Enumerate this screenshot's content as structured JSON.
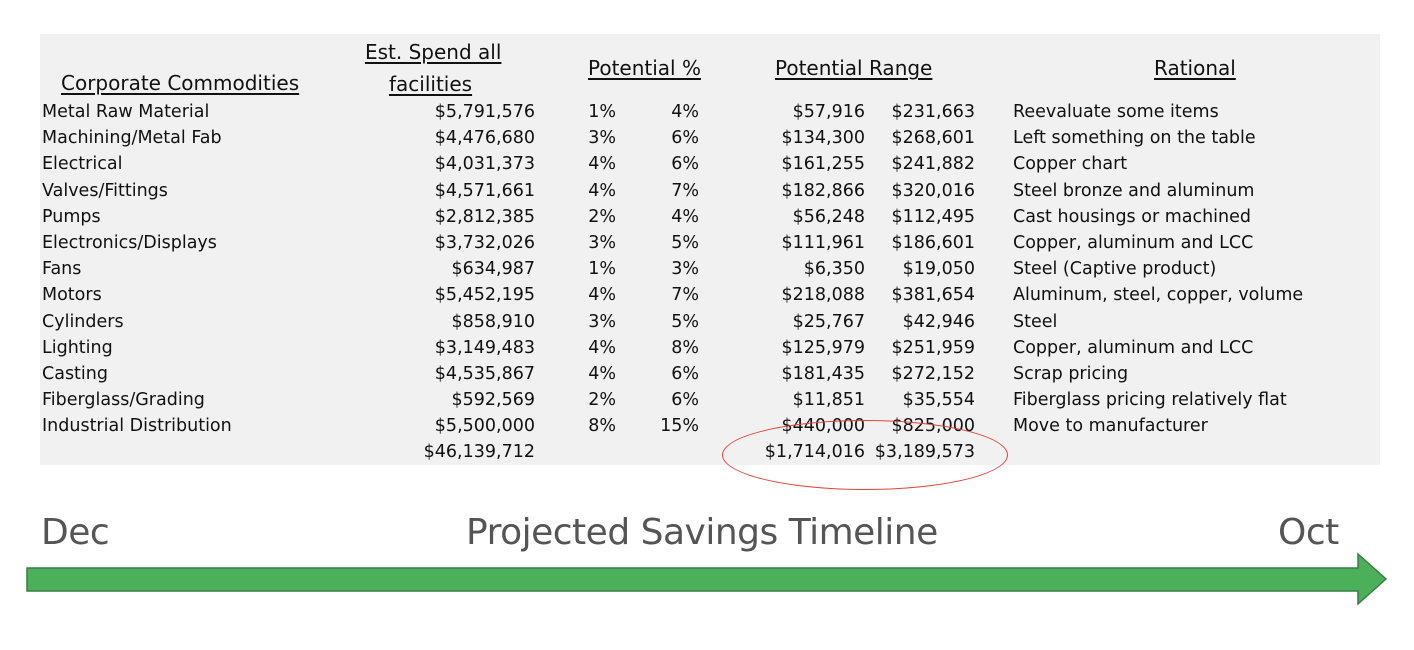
{
  "headers": {
    "commodity": "Corporate Commodities",
    "spend_line1": "Est. Spend all",
    "spend_line2": "facilities",
    "potential_pct": "Potential %",
    "potential_range": "Potential Range",
    "rational": "Rational"
  },
  "rows": [
    {
      "name": "Metal Raw Material",
      "spend": "$5,791,576",
      "pct_low": "1%",
      "pct_high": "4%",
      "range_low": "$57,916",
      "range_high": "$231,663",
      "rational": "Reevaluate some items"
    },
    {
      "name": "Machining/Metal Fab",
      "spend": "$4,476,680",
      "pct_low": "3%",
      "pct_high": "6%",
      "range_low": "$134,300",
      "range_high": "$268,601",
      "rational": "Left something on the table"
    },
    {
      "name": "Electrical",
      "spend": "$4,031,373",
      "pct_low": "4%",
      "pct_high": "6%",
      "range_low": "$161,255",
      "range_high": "$241,882",
      "rational": "Copper chart"
    },
    {
      "name": "Valves/Fittings",
      "spend": "$4,571,661",
      "pct_low": "4%",
      "pct_high": "7%",
      "range_low": "$182,866",
      "range_high": "$320,016",
      "rational": "Steel bronze and aluminum"
    },
    {
      "name": "Pumps",
      "spend": "$2,812,385",
      "pct_low": "2%",
      "pct_high": "4%",
      "range_low": "$56,248",
      "range_high": "$112,495",
      "rational": "Cast housings or machined"
    },
    {
      "name": "Electronics/Displays",
      "spend": "$3,732,026",
      "pct_low": "3%",
      "pct_high": "5%",
      "range_low": "$111,961",
      "range_high": "$186,601",
      "rational": "Copper, aluminum and LCC"
    },
    {
      "name": "Fans",
      "spend": "$634,987",
      "pct_low": "1%",
      "pct_high": "3%",
      "range_low": "$6,350",
      "range_high": "$19,050",
      "rational": "Steel (Captive product)"
    },
    {
      "name": "Motors",
      "spend": "$5,452,195",
      "pct_low": "4%",
      "pct_high": "7%",
      "range_low": "$218,088",
      "range_high": "$381,654",
      "rational": "Aluminum, steel, copper, volume"
    },
    {
      "name": "Cylinders",
      "spend": "$858,910",
      "pct_low": "3%",
      "pct_high": "5%",
      "range_low": "$25,767",
      "range_high": "$42,946",
      "rational": "Steel"
    },
    {
      "name": "Lighting",
      "spend": "$3,149,483",
      "pct_low": "4%",
      "pct_high": "8%",
      "range_low": "$125,979",
      "range_high": "$251,959",
      "rational": "Copper, aluminum and LCC"
    },
    {
      "name": "Casting",
      "spend": "$4,535,867",
      "pct_low": "4%",
      "pct_high": "6%",
      "range_low": "$181,435",
      "range_high": "$272,152",
      "rational": "Scrap pricing"
    },
    {
      "name": "Fiberglass/Grading",
      "spend": "$592,569",
      "pct_low": "2%",
      "pct_high": "6%",
      "range_low": "$11,851",
      "range_high": "$35,554",
      "rational": "Fiberglass pricing relatively flat"
    },
    {
      "name": "Industrial Distribution",
      "spend": "$5,500,000",
      "pct_low": "8%",
      "pct_high": "15%",
      "range_low": "$440,000",
      "range_high": "$825,000",
      "rational": "Move to manufacturer"
    }
  ],
  "totals": {
    "spend": "$46,139,712",
    "range_low": "$1,714,016",
    "range_high": "$3,189,573"
  },
  "timeline": {
    "start": "Dec",
    "title": "Projected Savings Timeline",
    "end": "Oct",
    "arrow_color": "#4caf5a"
  },
  "annotation_color": "#e0453a"
}
